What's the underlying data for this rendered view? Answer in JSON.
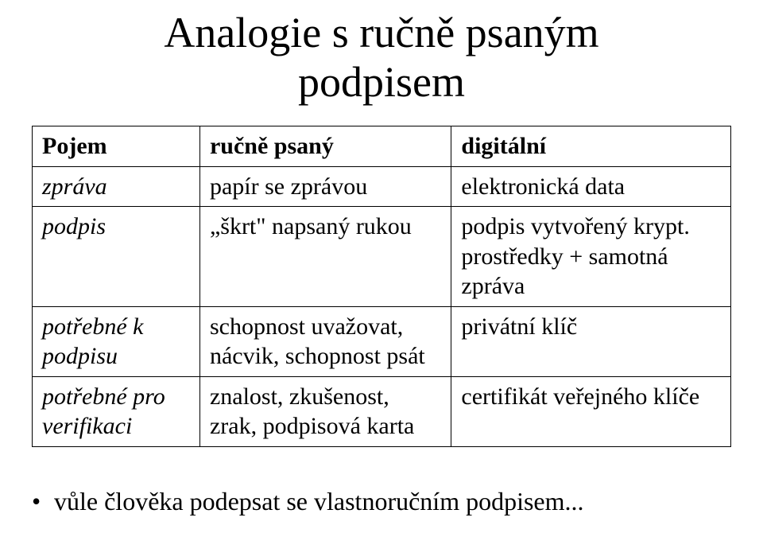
{
  "title_line1": "Analogie s ručně psaným",
  "title_line2": "podpisem",
  "table": {
    "header": {
      "c1": "Pojem",
      "c2": "ručně psaný",
      "c3": "digitální"
    },
    "rows": [
      {
        "c1": "zpráva",
        "c2": "papír se zprávou",
        "c3": "elektronická data"
      },
      {
        "c1": "podpis",
        "c2": "„škrt\" napsaný rukou",
        "c3": "podpis vytvořený krypt. prostředky + samotná zpráva"
      },
      {
        "c1": "potřebné k podpisu",
        "c2": "schopnost uvažovat, nácvik, schopnost psát",
        "c3": "privátní klíč"
      },
      {
        "c1": "potřebné pro verifikaci",
        "c2": "znalost, zkušenost, zrak, podpisová karta",
        "c3": "certifikát veřejného klíče"
      }
    ]
  },
  "bullet": "vůle člověka podepsat se vlastnoručním podpisem..."
}
